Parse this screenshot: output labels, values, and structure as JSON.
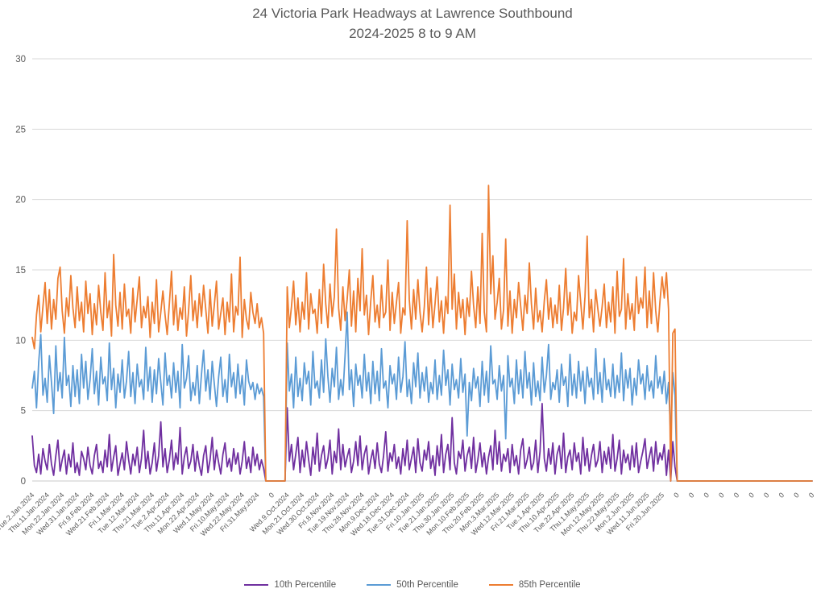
{
  "title_line1": "24 Victoria Park Headways at Lawrence Southbound",
  "title_line2": "2024-2025 8 to 9 AM",
  "colors": {
    "text_gray": "#595959",
    "gridline": "#D9D9D9",
    "axis_line": "#C9C9C9"
  },
  "chart_data": {
    "type": "line",
    "title": "24 Victoria Park Headways at Lawrence Southbound 2024-2025 8 to 9 AM",
    "xlabel": "",
    "ylabel": "",
    "ylim": [
      0,
      30
    ],
    "y_ticks": [
      0,
      5,
      10,
      15,
      20,
      25,
      30
    ],
    "grid": "horizontal",
    "legend_position": "bottom",
    "label_every": 7,
    "x_labels": [
      "Tue.2.Jan.2024",
      "Thu.11.Jan.2024",
      "Mon.22.Jan.2024",
      "Wed.31.Jan.2024",
      "Fri.9.Feb.2024",
      "Wed.21.Feb.2024",
      "Fri.1.Mar.2024",
      "Tue.12.Mar.2024",
      "Thu.21.Mar.2024",
      "Tue.2.Apr.2024",
      "Thu.11.Apr.2024",
      "Mon.22.Apr.2024",
      "Wed.1.May.2024",
      "Fri.10.May.2024",
      "Wed.22.May.2024",
      "Fri.31.May.2024",
      "0",
      "Wed.9.Oct.2024",
      "Mon.21.Oct.2024",
      "Wed.30.Oct.2024",
      "Fri.8.Nov.2024",
      "Tue.19.Nov.2024",
      "Thu.28.Nov.2024",
      "Mon.9.Dec.2024",
      "Wed.18.Dec.2024",
      "Tue.31.Dec.2024",
      "Fri.10.Jan.2025",
      "Tue.21.Jan.2025",
      "Thu.30.Jan.2025",
      "Mon.10.Feb.2025",
      "Thu.20.Feb.2025",
      "Mon.3.Mar.2025",
      "Wed.12.Mar.2025",
      "Fri.21.Mar.2025",
      "Tue.1.Apr.2025",
      "Thu.10.Apr.2025",
      "Tue.22.Apr.2025",
      "Thu.1.May.2025",
      "Mon.12.May.2025",
      "Thu.22.May.2025",
      "Mon.2.Jun.2025",
      "Wed.11.Jun.2025",
      "Fri.20.Jun.2025",
      "0",
      "0",
      "0",
      "0",
      "0",
      "0",
      "0",
      "0",
      "0",
      "0"
    ],
    "gap_zero_count": 10,
    "tail_zero_count": 64,
    "series": [
      {
        "name": "10th Percentile",
        "color": "#7030A0",
        "part1": [
          3.2,
          1.1,
          0.6,
          1.9,
          0.5,
          2.3,
          1.4,
          0.8,
          2.6,
          1.2,
          0.4,
          1.8,
          2.9,
          0.7,
          1.5,
          2.2,
          0.5,
          1.9,
          1.0,
          2.7,
          0.6,
          1.3,
          0.4,
          2.1,
          1.6,
          0.8,
          2.4,
          1.1,
          0.5,
          1.8,
          2.6,
          0.9,
          1.4,
          0.6,
          2.2,
          1.0,
          3.3,
          0.7,
          1.7,
          2.5,
          0.4,
          1.2,
          2.0,
          0.8,
          2.8,
          1.5,
          0.5,
          1.9,
          1.1,
          2.4,
          0.6,
          1.6,
          3.6,
          0.9,
          2.1,
          0.5,
          1.3,
          2.7,
          0.7,
          1.8,
          4.2,
          1.0,
          2.3,
          0.6,
          1.5,
          2.9,
          0.8,
          2.0,
          1.2,
          3.8,
          0.5,
          1.7,
          2.4,
          0.9,
          1.4,
          2.6,
          0.7,
          2.1,
          1.1,
          0.4,
          1.8,
          2.5,
          0.6,
          1.5,
          3.1,
          0.8,
          2.2,
          1.3,
          0.5,
          1.9,
          2.7,
          1.0,
          1.6,
          0.7,
          2.3,
          1.2,
          2.0,
          0.5,
          1.4,
          2.8,
          0.9,
          1.7,
          0.6,
          2.4,
          1.1,
          1.9,
          0.8,
          1.5,
          0.9
        ],
        "part2": [
          5.2,
          1.4,
          2.6,
          0.8,
          1.9,
          3.1,
          0.6,
          2.2,
          1.0,
          2.8,
          1.5,
          0.4,
          2.4,
          1.2,
          3.4,
          0.7,
          1.8,
          2.5,
          0.9,
          1.6,
          2.9,
          0.5,
          2.1,
          1.3,
          3.7,
          0.8,
          2.6,
          1.0,
          1.7,
          2.3,
          0.6,
          1.4,
          2.8,
          1.1,
          3.2,
          0.8,
          1.9,
          2.5,
          0.5,
          1.5,
          2.2,
          0.9,
          2.7,
          1.2,
          0.6,
          1.8,
          3.5,
          0.7,
          2.0,
          1.4,
          2.6,
          0.9,
          1.7,
          0.5,
          2.3,
          1.1,
          2.9,
          0.8,
          1.6,
          2.4,
          0.6,
          3.0,
          1.3,
          0.7,
          2.2,
          1.5,
          2.8,
          0.9,
          1.8,
          0.4,
          2.5,
          1.1,
          3.3,
          0.6,
          1.9,
          2.6,
          0.8,
          4.5,
          1.3,
          0.5,
          2.1,
          1.6,
          2.9,
          0.7,
          1.8,
          2.4,
          0.9,
          3.1,
          0.6,
          1.5,
          2.7,
          1.0,
          2.0,
          0.5,
          1.7,
          2.5,
          0.8,
          3.6,
          1.2,
          2.8,
          0.7,
          1.9,
          1.4,
          2.3,
          0.6,
          2.6,
          1.1,
          1.8,
          0.5,
          2.2,
          3.0,
          0.9,
          1.5,
          2.4,
          0.8,
          1.3,
          2.9,
          0.6,
          2.1,
          5.5,
          1.6,
          0.7,
          2.3,
          1.2,
          2.7,
          0.5,
          1.9,
          2.5,
          0.9,
          3.4,
          0.6,
          1.7,
          2.2,
          0.8,
          2.7,
          1.4,
          2.0,
          0.5,
          3.1,
          1.1,
          2.3,
          0.7,
          1.8,
          2.6,
          1.0,
          1.5,
          2.8,
          0.6,
          2.1,
          1.2,
          2.4,
          0.9,
          3.3,
          0.7,
          1.6,
          2.9,
          0.5,
          2.2,
          1.3,
          1.9,
          0.8,
          2.5,
          1.0,
          2.7,
          0.6,
          1.4,
          2.1,
          3.0,
          0.9,
          1.7,
          2.4,
          0.7,
          2.8,
          1.2,
          2.0,
          1.5,
          2.6,
          0.4,
          2.2,
          0.0,
          2.8,
          1.0
        ]
      },
      {
        "name": "50th Percentile",
        "color": "#5B9BD5",
        "part1": [
          6.6,
          7.8,
          5.2,
          8.4,
          10.4,
          6.1,
          7.3,
          5.6,
          8.9,
          7.0,
          4.8,
          9.6,
          6.4,
          7.7,
          5.9,
          10.2,
          6.8,
          7.5,
          5.3,
          8.2,
          6.0,
          7.9,
          5.5,
          9.0,
          6.6,
          8.5,
          5.8,
          7.2,
          9.4,
          6.2,
          7.8,
          5.4,
          8.8,
          6.9,
          7.4,
          5.7,
          9.8,
          6.5,
          8.0,
          5.2,
          7.6,
          6.3,
          8.6,
          5.9,
          7.1,
          9.2,
          6.0,
          7.7,
          5.5,
          8.3,
          6.7,
          7.2,
          5.8,
          9.5,
          6.4,
          8.1,
          5.6,
          7.9,
          6.2,
          8.7,
          7.0,
          5.4,
          9.1,
          6.8,
          7.5,
          5.9,
          8.4,
          6.3,
          7.8,
          5.2,
          9.7,
          6.6,
          7.3,
          8.9,
          5.7,
          7.0,
          6.1,
          8.2,
          5.5,
          7.6,
          9.3,
          6.4,
          7.9,
          5.8,
          8.5,
          6.9,
          5.3,
          7.4,
          8.8,
          6.0,
          7.2,
          5.6,
          9.0,
          6.7,
          7.7,
          5.9,
          8.3,
          6.2,
          7.5,
          5.4,
          8.6,
          7.1,
          6.5,
          7.0,
          5.8,
          6.9,
          6.2,
          6.6,
          6.0
        ],
        "part2": [
          9.8,
          6.4,
          7.6,
          5.2,
          8.8,
          6.0,
          7.3,
          5.7,
          8.4,
          6.9,
          7.8,
          5.4,
          9.2,
          6.6,
          7.1,
          5.9,
          8.6,
          6.3,
          10.1,
          7.4,
          5.6,
          8.0,
          6.7,
          9.5,
          5.8,
          7.2,
          6.1,
          8.9,
          12.0,
          6.5,
          7.9,
          5.3,
          8.3,
          6.8,
          7.5,
          5.9,
          9.0,
          6.4,
          7.7,
          5.5,
          8.5,
          6.2,
          7.8,
          5.7,
          9.4,
          6.6,
          7.1,
          5.2,
          8.2,
          6.9,
          7.6,
          5.8,
          8.8,
          6.3,
          7.4,
          9.9,
          6.0,
          7.2,
          5.5,
          8.4,
          6.7,
          9.1,
          5.9,
          7.7,
          6.4,
          8.1,
          5.6,
          7.0,
          6.2,
          8.6,
          5.8,
          7.5,
          6.1,
          9.3,
          6.8,
          7.9,
          5.4,
          8.3,
          6.5,
          7.2,
          5.9,
          8.7,
          6.3,
          7.6,
          3.2,
          7.0,
          5.7,
          8.0,
          6.6,
          7.4,
          5.3,
          8.5,
          6.1,
          7.8,
          5.6,
          9.6,
          6.9,
          7.2,
          5.8,
          8.2,
          6.4,
          7.5,
          3.0,
          8.9,
          6.7,
          7.3,
          5.5,
          8.6,
          6.2,
          7.9,
          5.9,
          9.2,
          6.6,
          7.7,
          5.4,
          8.4,
          6.0,
          7.1,
          5.7,
          8.8,
          6.3,
          7.5,
          9.7,
          5.8,
          7.0,
          6.5,
          7.9,
          5.6,
          8.3,
          6.8,
          7.4,
          5.3,
          9.0,
          6.1,
          7.6,
          5.9,
          8.5,
          6.4,
          7.8,
          5.5,
          8.1,
          6.7,
          7.3,
          5.8,
          9.4,
          6.2,
          7.7,
          5.6,
          8.7,
          6.5,
          7.2,
          6.0,
          8.3,
          5.9,
          7.5,
          6.3,
          9.1,
          5.7,
          7.9,
          6.6,
          8.0,
          5.4,
          7.3,
          6.1,
          8.6,
          6.9,
          7.6,
          5.8,
          8.2,
          6.4,
          7.1,
          5.9,
          8.9,
          6.6,
          7.4,
          6.2,
          7.8,
          5.5,
          7.0,
          3.0,
          7.7,
          6.1
        ]
      },
      {
        "name": "85th Percentile",
        "color": "#ED7D31",
        "part1": [
          10.2,
          9.4,
          11.8,
          13.2,
          10.6,
          12.4,
          14.1,
          11.2,
          13.6,
          10.8,
          12.9,
          11.5,
          14.4,
          15.2,
          12.1,
          10.5,
          13.0,
          11.7,
          14.6,
          12.3,
          10.9,
          13.8,
          11.4,
          12.7,
          10.6,
          14.2,
          11.9,
          13.3,
          10.4,
          12.6,
          11.1,
          13.9,
          12.0,
          10.7,
          14.8,
          11.6,
          12.8,
          10.3,
          16.1,
          12.5,
          11.0,
          13.4,
          10.8,
          14.0,
          11.7,
          12.2,
          10.5,
          13.7,
          11.3,
          12.9,
          14.5,
          10.9,
          12.4,
          11.6,
          13.1,
          10.2,
          12.7,
          11.2,
          14.3,
          10.6,
          12.0,
          13.5,
          11.8,
          10.4,
          12.6,
          14.9,
          11.1,
          13.2,
          10.7,
          12.3,
          11.5,
          13.8,
          10.3,
          12.1,
          14.6,
          11.4,
          12.8,
          10.9,
          13.3,
          11.7,
          13.9,
          12.2,
          10.5,
          13.6,
          11.0,
          12.5,
          14.2,
          10.8,
          11.9,
          13.0,
          10.4,
          12.7,
          11.3,
          14.7,
          10.6,
          12.4,
          11.8,
          15.9,
          10.2,
          12.9,
          11.5,
          10.8,
          13.4,
          12.0,
          11.2,
          12.6,
          10.9,
          11.6,
          10.5
        ],
        "part2": [
          13.8,
          10.9,
          12.4,
          14.2,
          11.1,
          13.0,
          10.6,
          12.7,
          11.5,
          14.8,
          10.8,
          13.3,
          11.9,
          12.2,
          10.5,
          13.6,
          11.2,
          15.4,
          12.6,
          10.9,
          14.0,
          11.7,
          13.1,
          17.9,
          12.3,
          10.7,
          13.8,
          11.4,
          12.9,
          15.0,
          11.0,
          13.5,
          10.6,
          14.4,
          12.1,
          16.5,
          11.8,
          13.2,
          10.4,
          12.8,
          14.6,
          11.3,
          12.5,
          10.9,
          13.9,
          11.6,
          12.0,
          15.7,
          10.7,
          13.4,
          11.2,
          12.7,
          14.1,
          10.5,
          12.3,
          11.8,
          18.5,
          12.9,
          10.8,
          13.6,
          11.5,
          14.3,
          12.0,
          10.6,
          12.4,
          15.2,
          11.1,
          13.7,
          10.9,
          12.6,
          14.5,
          11.3,
          12.8,
          10.5,
          13.1,
          11.9,
          19.6,
          12.2,
          14.7,
          10.8,
          13.4,
          11.6,
          12.9,
          10.4,
          13.0,
          11.7,
          14.9,
          12.5,
          10.9,
          13.8,
          11.2,
          17.6,
          12.0,
          10.6,
          21.0,
          13.3,
          16.0,
          11.5,
          12.7,
          14.4,
          10.8,
          12.2,
          17.2,
          11.0,
          13.5,
          10.5,
          12.9,
          11.6,
          14.1,
          12.4,
          10.7,
          13.2,
          11.9,
          15.5,
          12.6,
          10.8,
          13.7,
          11.3,
          12.1,
          10.6,
          12.8,
          14.3,
          11.5,
          13.0,
          10.9,
          12.5,
          11.2,
          13.9,
          10.7,
          12.3,
          15.1,
          11.8,
          13.4,
          10.5,
          12.0,
          11.4,
          14.6,
          12.7,
          10.8,
          13.1,
          17.4,
          11.6,
          12.9,
          10.6,
          13.6,
          12.2,
          11.0,
          12.4,
          14.0,
          10.9,
          12.7,
          11.3,
          13.8,
          10.5,
          14.9,
          11.7,
          12.2,
          15.8,
          10.8,
          13.3,
          11.5,
          12.6,
          10.7,
          14.5,
          11.9,
          13.0,
          12.3,
          15.2,
          10.9,
          13.5,
          11.2,
          14.8,
          12.1,
          10.6,
          12.8,
          14.5,
          13.0,
          14.8,
          12.2,
          0.0,
          10.5,
          10.8
        ]
      }
    ]
  }
}
